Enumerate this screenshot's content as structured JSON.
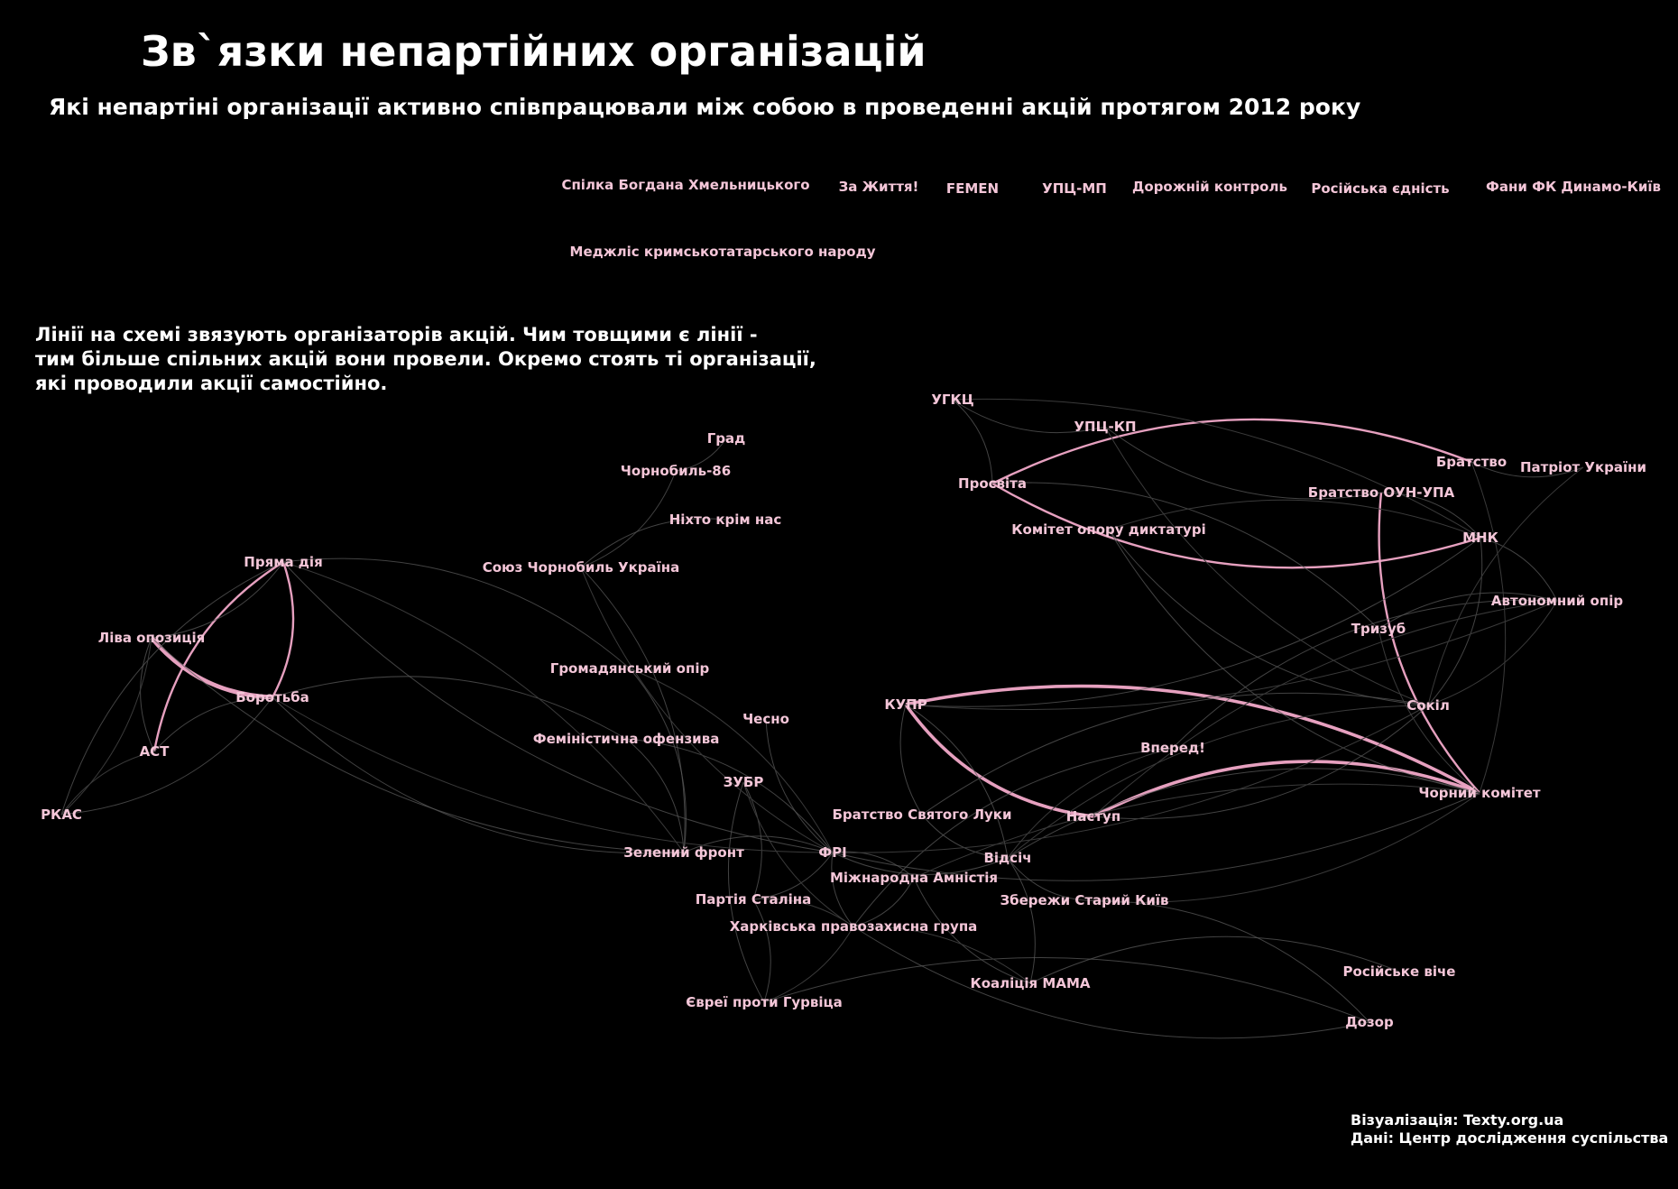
{
  "title": "Зв`язки непартійних організацій",
  "subtitle": "Які непартіні організації активно співпрацювали між собою в проведенні акцій протягом 2012 року",
  "note": [
    "Лінії на схемі звязують організаторів акцій. Чим товщими є лінії -",
    "тим більше спільних акцій вони провели. Окремо стоять ті організації,",
    "які проводили акції самостійно."
  ],
  "credits": [
    "Візуалізація: Texty.org.ua",
    "Дані: Центр дослідження суспільства"
  ],
  "colors": {
    "background": "#000000",
    "label": "#f4c6d8",
    "strong_edge": "#f2a9c9",
    "weak_edge": "#5a5a5a"
  },
  "nodes": [
    {
      "id": "bogdan",
      "label": "Спілка Богдана Хмельницького"
    },
    {
      "id": "zazhyttia",
      "label": "За Життя!"
    },
    {
      "id": "femen",
      "label": "FEMEN"
    },
    {
      "id": "upcmp",
      "label": "УПЦ-МП"
    },
    {
      "id": "dorozhnii",
      "label": "Дорожній контроль"
    },
    {
      "id": "rosedn",
      "label": "Російська єдність"
    },
    {
      "id": "fanydk",
      "label": "Фани ФК Динамо-Київ"
    },
    {
      "id": "medzhlis",
      "label": "Меджліс кримськотатарського народу"
    },
    {
      "id": "ugkc",
      "label": "УГКЦ"
    },
    {
      "id": "upckp",
      "label": "УПЦ-КП"
    },
    {
      "id": "bratstvo",
      "label": "Братство"
    },
    {
      "id": "patriot",
      "label": "Патріот України"
    },
    {
      "id": "prosvita",
      "label": "Просвіта"
    },
    {
      "id": "bratoun",
      "label": "Братство ОУН-УПА"
    },
    {
      "id": "komitet",
      "label": "Комітет опору диктатурі"
    },
    {
      "id": "mnk",
      "label": "МНК"
    },
    {
      "id": "grad",
      "label": "Град"
    },
    {
      "id": "chornobyl86",
      "label": "Чорнобиль-86"
    },
    {
      "id": "nihto",
      "label": "Ніхто крім нас"
    },
    {
      "id": "soyuzch",
      "label": "Союз Чорнобиль Україна"
    },
    {
      "id": "priama",
      "label": "Пряма дія"
    },
    {
      "id": "liva",
      "label": "Ліва опозиція"
    },
    {
      "id": "borotba",
      "label": "Боротьба"
    },
    {
      "id": "ast",
      "label": "АСТ"
    },
    {
      "id": "rkas",
      "label": "РКАС"
    },
    {
      "id": "hromad",
      "label": "Громадянський опір"
    },
    {
      "id": "chesno",
      "label": "Чесно"
    },
    {
      "id": "feminist",
      "label": "Феміністична офензива"
    },
    {
      "id": "zubr",
      "label": "ЗУБР"
    },
    {
      "id": "zelenyi",
      "label": "Зелений фронт"
    },
    {
      "id": "fri",
      "label": "ФРІ"
    },
    {
      "id": "partiia",
      "label": "Партія Сталіна"
    },
    {
      "id": "kharkiv",
      "label": "Харківська правозахисна група"
    },
    {
      "id": "yevrei",
      "label": "Євреї проти Гурвіца"
    },
    {
      "id": "kupr",
      "label": "КУПР"
    },
    {
      "id": "avtonom",
      "label": "Автономний опір"
    },
    {
      "id": "tryzub",
      "label": "Тризуб"
    },
    {
      "id": "sokil",
      "label": "Сокіл"
    },
    {
      "id": "vpered",
      "label": "Вперед!"
    },
    {
      "id": "chornyi",
      "label": "Чорний комітет"
    },
    {
      "id": "bratluk",
      "label": "Братство Святого Луки"
    },
    {
      "id": "nastup",
      "label": "Наступ"
    },
    {
      "id": "vidsich",
      "label": "Відсіч"
    },
    {
      "id": "mizhnar",
      "label": "Міжнародна Амністія"
    },
    {
      "id": "zberezhy",
      "label": "Збережи Старий Київ"
    },
    {
      "id": "mama",
      "label": "Коаліція МАМА"
    },
    {
      "id": "rosviche",
      "label": "Російське віче"
    },
    {
      "id": "dozor",
      "label": "Дозор"
    }
  ],
  "edges": [
    {
      "source": "liva",
      "target": "borotba",
      "weight": 4
    },
    {
      "source": "kupr",
      "target": "chornyi",
      "weight": 3
    },
    {
      "source": "kupr",
      "target": "nastup",
      "weight": 3
    },
    {
      "source": "nastup",
      "target": "chornyi",
      "weight": 3
    },
    {
      "source": "prosvita",
      "target": "mnk",
      "weight": 2
    },
    {
      "source": "prosvita",
      "target": "bratstvo",
      "weight": 2
    },
    {
      "source": "bratoun",
      "target": "chornyi",
      "weight": 2
    },
    {
      "source": "priama",
      "target": "borotba",
      "weight": 2
    },
    {
      "source": "priama",
      "target": "ast",
      "weight": 2
    },
    {
      "source": "priama",
      "target": "liva",
      "weight": 1
    },
    {
      "source": "liva",
      "target": "ast",
      "weight": 1
    },
    {
      "source": "ast",
      "target": "borotba",
      "weight": 1
    },
    {
      "source": "rkas",
      "target": "borotba",
      "weight": 1
    },
    {
      "source": "rkas",
      "target": "priama",
      "weight": 1
    },
    {
      "source": "kupr",
      "target": "bratluk",
      "weight": 1
    },
    {
      "source": "kupr",
      "target": "vidsich",
      "weight": 1
    },
    {
      "source": "bratluk",
      "target": "vidsich",
      "weight": 1
    },
    {
      "source": "bratluk",
      "target": "sokil",
      "weight": 1
    },
    {
      "source": "fri",
      "target": "vidsich",
      "weight": 1
    },
    {
      "source": "fri",
      "target": "mizhnar",
      "weight": 1
    },
    {
      "source": "fri",
      "target": "chornyi",
      "weight": 1
    },
    {
      "source": "fri",
      "target": "priama",
      "weight": 1
    },
    {
      "source": "fri",
      "target": "zelenyi",
      "weight": 1
    },
    {
      "source": "fri",
      "target": "partiia",
      "weight": 1
    },
    {
      "source": "fri",
      "target": "kharkiv",
      "weight": 1
    },
    {
      "source": "vidsich",
      "target": "chornyi",
      "weight": 1
    },
    {
      "source": "vidsich",
      "target": "zberezhy",
      "weight": 1
    },
    {
      "source": "vidsich",
      "target": "mama",
      "weight": 1
    },
    {
      "source": "kharkiv",
      "target": "dozor",
      "weight": 1
    },
    {
      "source": "yevrei",
      "target": "dozor",
      "weight": 1
    },
    {
      "source": "yevrei",
      "target": "partiia",
      "weight": 1
    },
    {
      "source": "mnk",
      "target": "sokil",
      "weight": 1
    },
    {
      "source": "bratstvo",
      "target": "patriot",
      "weight": 1
    },
    {
      "source": "mnk",
      "target": "avtonom",
      "weight": 1
    },
    {
      "source": "ugkc",
      "target": "upckp",
      "weight": 1
    },
    {
      "source": "ugkc",
      "target": "prosvita",
      "weight": 1
    },
    {
      "source": "upckp",
      "target": "bratoun",
      "weight": 1
    },
    {
      "source": "prosvita",
      "target": "tryzub",
      "weight": 1
    },
    {
      "source": "komitet",
      "target": "sokil",
      "weight": 1
    },
    {
      "source": "chornobyl86",
      "target": "soyuzch",
      "weight": 1
    },
    {
      "source": "nihto",
      "target": "soyuzch",
      "weight": 1
    },
    {
      "source": "grad",
      "target": "chornobyl86",
      "weight": 1
    },
    {
      "source": "hromad",
      "target": "priama",
      "weight": 1
    },
    {
      "source": "hromad",
      "target": "zelenyi",
      "weight": 1
    },
    {
      "source": "feminist",
      "target": "borotba",
      "weight": 1
    },
    {
      "source": "feminist",
      "target": "zelenyi",
      "weight": 1
    },
    {
      "source": "chesno",
      "target": "fri",
      "weight": 1
    },
    {
      "source": "zubr",
      "target": "partiia",
      "weight": 1
    },
    {
      "source": "zubr",
      "target": "yevrei",
      "weight": 1
    },
    {
      "source": "soyuzch",
      "target": "zelenyi",
      "weight": 1
    },
    {
      "source": "vpered",
      "target": "kharkiv",
      "weight": 1
    },
    {
      "source": "vpered",
      "target": "avtonom",
      "weight": 1
    },
    {
      "source": "nastup",
      "target": "sokil",
      "weight": 1
    },
    {
      "source": "mizhnar",
      "target": "kharkiv",
      "weight": 1
    },
    {
      "source": "mizhnar",
      "target": "mama",
      "weight": 1
    },
    {
      "source": "zberezhy",
      "target": "dozor",
      "weight": 1
    },
    {
      "source": "rosviche",
      "target": "mama",
      "weight": 1
    },
    {
      "source": "tryzub",
      "target": "avtonom",
      "weight": 1
    },
    {
      "source": "kupr",
      "target": "mnk",
      "weight": 1
    },
    {
      "source": "bratoun",
      "target": "mnk",
      "weight": 1
    },
    {
      "source": "komitet",
      "target": "chornyi",
      "weight": 1
    },
    {
      "source": "zelenyi",
      "target": "borotba",
      "weight": 1
    },
    {
      "source": "liva",
      "target": "zelenyi",
      "weight": 1
    },
    {
      "source": "feminist",
      "target": "fri",
      "weight": 1
    }
  ]
}
